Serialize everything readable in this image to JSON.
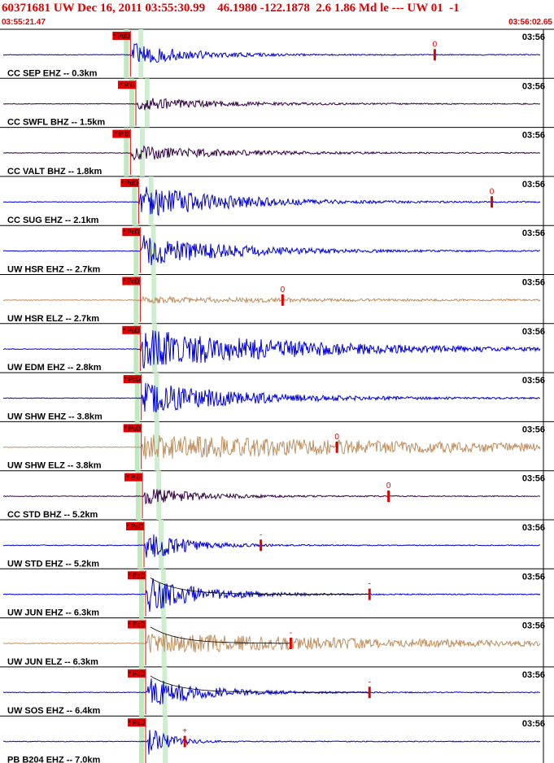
{
  "header": {
    "title": "60371681 UW Dec 16, 2011 03:55:30.99    46.1980 -122.1878  2.6 1.86 Md le --- UW 01  -1",
    "start_time": "03:55:21.47",
    "end_time": "03:56:02.65"
  },
  "chart_data": {
    "type": "seismogram",
    "x_axis": {
      "start": "03:55:21.47",
      "end": "03:56:02.65"
    },
    "grid": false,
    "traces": [
      {
        "label": "CC SEP EHZ -- 0.3km",
        "time_label": "03:56",
        "color": "#0000dd",
        "pick": "PdD",
        "pick_t": 0.24,
        "amp": 0.55,
        "decay": 0.1,
        "coda_mark": "0",
        "coda_t": 0.8,
        "coda_fit": false
      },
      {
        "label": "CC SWFL BHZ -- 1.5km",
        "time_label": "03:56",
        "color": "#330044",
        "pick": "P 0",
        "pick_t": 0.25,
        "amp": 0.3,
        "decay": 0.14,
        "coda_mark": "",
        "coda_t": null,
        "coda_fit": false
      },
      {
        "label": "CC VALT BHZ -- 1.8km",
        "time_label": "03:56",
        "color": "#330044",
        "pick": "P 0",
        "pick_t": 0.24,
        "amp": 0.35,
        "decay": 0.16,
        "coda_mark": "",
        "coda_t": null,
        "coda_fit": false
      },
      {
        "label": "CC SUG EHZ -- 2.1km",
        "time_label": "03:56",
        "color": "#0000dd",
        "pick": "PdD",
        "pick_t": 0.255,
        "amp": 0.75,
        "decay": 0.16,
        "coda_mark": "0",
        "coda_t": 0.905,
        "coda_fit": false
      },
      {
        "label": "UW HSR EHZ -- 2.7km",
        "time_label": "03:56",
        "color": "#0000dd",
        "pick": "PcD",
        "pick_t": 0.258,
        "amp": 0.7,
        "decay": 0.16,
        "coda_mark": "",
        "coda_t": null,
        "coda_fit": false
      },
      {
        "label": "UW HSR ELZ -- 2.7km",
        "time_label": "03:56",
        "color": "#c09060",
        "pick": "PcD",
        "pick_t": 0.258,
        "amp": 0.16,
        "decay": 0.3,
        "coda_mark": "0",
        "coda_t": 0.52,
        "coda_fit": false
      },
      {
        "label": "UW EDM EHZ -- 2.8km",
        "time_label": "03:56",
        "color": "#0000dd",
        "pick": "PcD",
        "pick_t": 0.258,
        "amp": 0.9,
        "decay": 0.28,
        "coda_mark": "",
        "coda_t": null,
        "coda_fit": false
      },
      {
        "label": "UW SHW EHZ -- 3.8km",
        "time_label": "03:56",
        "color": "#0000dd",
        "pick": "PcD",
        "pick_t": 0.26,
        "amp": 0.72,
        "decay": 0.18,
        "coda_mark": "",
        "coda_t": null,
        "coda_fit": false
      },
      {
        "label": "UW SHW ELZ -- 3.8km",
        "time_label": "03:56",
        "color": "#c09060",
        "pick": "PcD",
        "pick_t": 0.26,
        "amp": 0.55,
        "decay": 0.6,
        "coda_mark": "0",
        "coda_t": 0.62,
        "coda_fit": false
      },
      {
        "label": "CC STD BHZ -- 5.2km",
        "time_label": "03:56",
        "color": "#330044",
        "pick": "P 0",
        "pick_t": 0.262,
        "amp": 0.4,
        "decay": 0.1,
        "coda_mark": "0",
        "coda_t": 0.715,
        "coda_fit": false
      },
      {
        "label": "UW STD EHZ -- 5.2km",
        "time_label": "03:56",
        "color": "#0000dd",
        "pick": "PdD",
        "pick_t": 0.265,
        "amp": 0.75,
        "decay": 0.07,
        "coda_mark": "-",
        "coda_t": 0.48,
        "coda_fit": false
      },
      {
        "label": "UW JUN EHZ -- 6.3km",
        "time_label": "03:56",
        "color": "#0000dd",
        "pick": "PcD",
        "pick_t": 0.268,
        "amp": 0.8,
        "decay": 0.1,
        "coda_mark": "-",
        "coda_t": 0.68,
        "coda_fit": true
      },
      {
        "label": "UW JUN ELZ -- 6.3km",
        "time_label": "03:56",
        "color": "#c09060",
        "pick": "PcD",
        "pick_t": 0.268,
        "amp": 0.45,
        "decay": 0.5,
        "coda_mark": "-",
        "coda_t": 0.535,
        "coda_fit": true
      },
      {
        "label": "UW SOS EHZ -- 6.4km",
        "time_label": "03:56",
        "color": "#0000dd",
        "pick": "PcD",
        "pick_t": 0.268,
        "amp": 0.7,
        "decay": 0.1,
        "coda_mark": "-",
        "coda_t": 0.68,
        "coda_fit": true
      },
      {
        "label": "PB B204 EHZ -- 7.0km",
        "time_label": "03:56",
        "color": "#0000dd",
        "pick": "PcD",
        "pick_t": 0.268,
        "amp": 0.75,
        "decay": 0.04,
        "coda_mark": "+",
        "coda_t": 0.34,
        "coda_fit": false
      }
    ]
  }
}
